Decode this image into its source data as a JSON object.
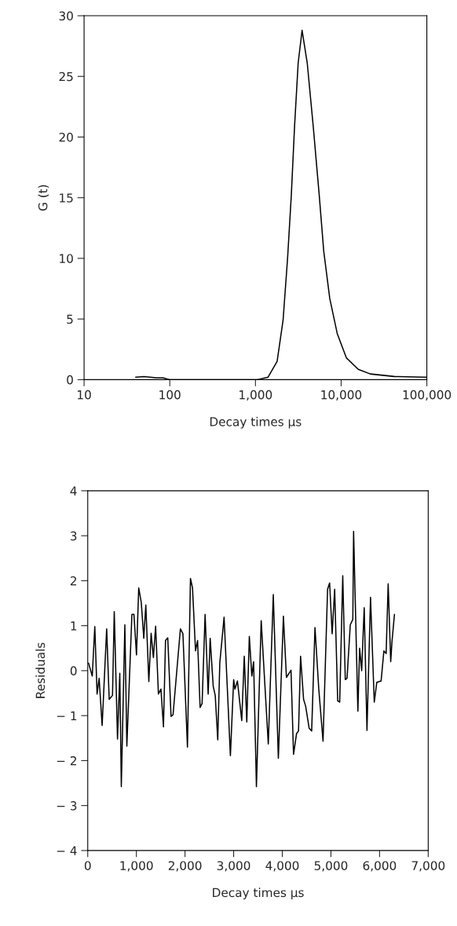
{
  "chart_data": [
    {
      "type": "line",
      "xlabel": "Decay times μs",
      "ylabel": "G (t)",
      "log": "x",
      "grid": false,
      "xlim": [
        10,
        100000
      ],
      "ylim": [
        0,
        30
      ],
      "xticks": [
        10,
        100,
        {
          "value": 1000,
          "label": "1,000"
        },
        {
          "value": 10000,
          "label": "10,000"
        },
        {
          "value": 100000,
          "label": "100,000"
        }
      ],
      "yticks": [
        0,
        5,
        10,
        15,
        20,
        25,
        30
      ],
      "series": [
        {
          "color": "#000000",
          "x": [
            40,
            50,
            70,
            83,
            100,
            1000,
            1050,
            1400,
            1790,
            2100,
            2370,
            2620,
            2860,
            3150,
            3500,
            4020,
            4720,
            5550,
            6260,
            7360,
            9000,
            11500,
            15850,
            21900,
            41700,
            93000,
            100000
          ],
          "values": [
            0.2,
            0.25,
            0.15,
            0.15,
            0.0,
            0.0,
            0.0,
            0.2,
            1.5,
            4.9,
            10.0,
            15.2,
            20.9,
            26.1,
            28.8,
            26.1,
            20.9,
            15.2,
            10.6,
            6.7,
            3.8,
            1.8,
            0.85,
            0.47,
            0.26,
            0.2,
            0.2
          ]
        }
      ]
    },
    {
      "type": "line",
      "xlabel": "Decay times μs",
      "ylabel": "Residuals",
      "grid": false,
      "xlim": [
        0,
        7000
      ],
      "ylim": [
        -4,
        4
      ],
      "xticks": [
        0,
        {
          "value": 1000,
          "label": "1,000"
        },
        {
          "value": 2000,
          "label": "2,000"
        },
        {
          "value": 3000,
          "label": "3,000"
        },
        {
          "value": 4000,
          "label": "4,000"
        },
        {
          "value": 5000,
          "label": "5,000"
        },
        {
          "value": 6000,
          "label": "6,000"
        },
        {
          "value": 7000,
          "label": "7,000"
        }
      ],
      "yticks": [
        {
          "value": -4,
          "label": "− 4"
        },
        {
          "value": -3,
          "label": "− 3"
        },
        {
          "value": -2,
          "label": "− 2"
        },
        {
          "value": -1,
          "label": "− 1"
        },
        0,
        1,
        2,
        3,
        4
      ],
      "series": [
        {
          "color": "#000000",
          "x": [
            16,
            93,
            145,
            192,
            234,
            296,
            389,
            441,
            509,
            545,
            612,
            659,
            690,
            763,
            804,
            908,
            950,
            1002,
            1048,
            1100,
            1152,
            1194,
            1256,
            1303,
            1350,
            1396,
            1453,
            1505,
            1557,
            1599,
            1645,
            1713,
            1754,
            1905,
            1957,
            2050,
            2112,
            2154,
            2216,
            2258,
            2310,
            2351,
            2413,
            2476,
            2517,
            2580,
            2621,
            2673,
            2715,
            2803,
            2933,
            3000,
            3026,
            3078,
            3166,
            3218,
            3270,
            3322,
            3374,
            3410,
            3468,
            3566,
            3712,
            3815,
            3919,
            4023,
            4085,
            4179,
            4231,
            4293,
            4334,
            4376,
            4438,
            4480,
            4552,
            4604,
            4672,
            4750,
            4838,
            4931,
            4973,
            5025,
            5077,
            5139,
            5180,
            5243,
            5295,
            5331,
            5398,
            5450,
            5466,
            5554,
            5590,
            5632,
            5684,
            5741,
            5814,
            5891,
            5943,
            6031,
            6089,
            6135,
            6177,
            6229,
            6255,
            6306
          ],
          "values": [
            0.17,
            -0.12,
            0.98,
            -0.52,
            -0.17,
            -1.22,
            0.93,
            -0.64,
            -0.55,
            1.31,
            -1.52,
            -0.06,
            -2.58,
            1.02,
            -1.68,
            1.25,
            1.25,
            0.35,
            1.84,
            1.52,
            0.72,
            1.46,
            -0.24,
            0.83,
            0.29,
            0.99,
            -0.52,
            -0.41,
            -1.25,
            0.67,
            0.73,
            -1.02,
            -0.98,
            0.93,
            0.82,
            -1.7,
            2.05,
            1.84,
            0.44,
            0.67,
            -0.82,
            -0.73,
            1.25,
            -0.52,
            0.72,
            -0.35,
            -0.55,
            -1.54,
            0.17,
            1.19,
            -1.89,
            -0.2,
            -0.41,
            -0.23,
            -1.11,
            0.32,
            -1.14,
            0.76,
            -0.12,
            0.2,
            -2.58,
            1.11,
            -1.63,
            1.69,
            -1.95,
            1.21,
            -0.15,
            0.01,
            -1.86,
            -1.4,
            -1.34,
            0.32,
            -0.64,
            -0.79,
            -1.28,
            -1.34,
            0.96,
            -0.41,
            -1.57,
            1.81,
            1.95,
            0.82,
            1.81,
            -0.67,
            -0.7,
            2.11,
            -0.2,
            -0.17,
            1.02,
            1.14,
            3.1,
            -0.9,
            0.5,
            0.0,
            1.4,
            -1.33,
            1.63,
            -0.7,
            -0.26,
            -0.23,
            0.44,
            0.38,
            1.93,
            0.2,
            0.64,
            1.25
          ]
        }
      ]
    }
  ]
}
